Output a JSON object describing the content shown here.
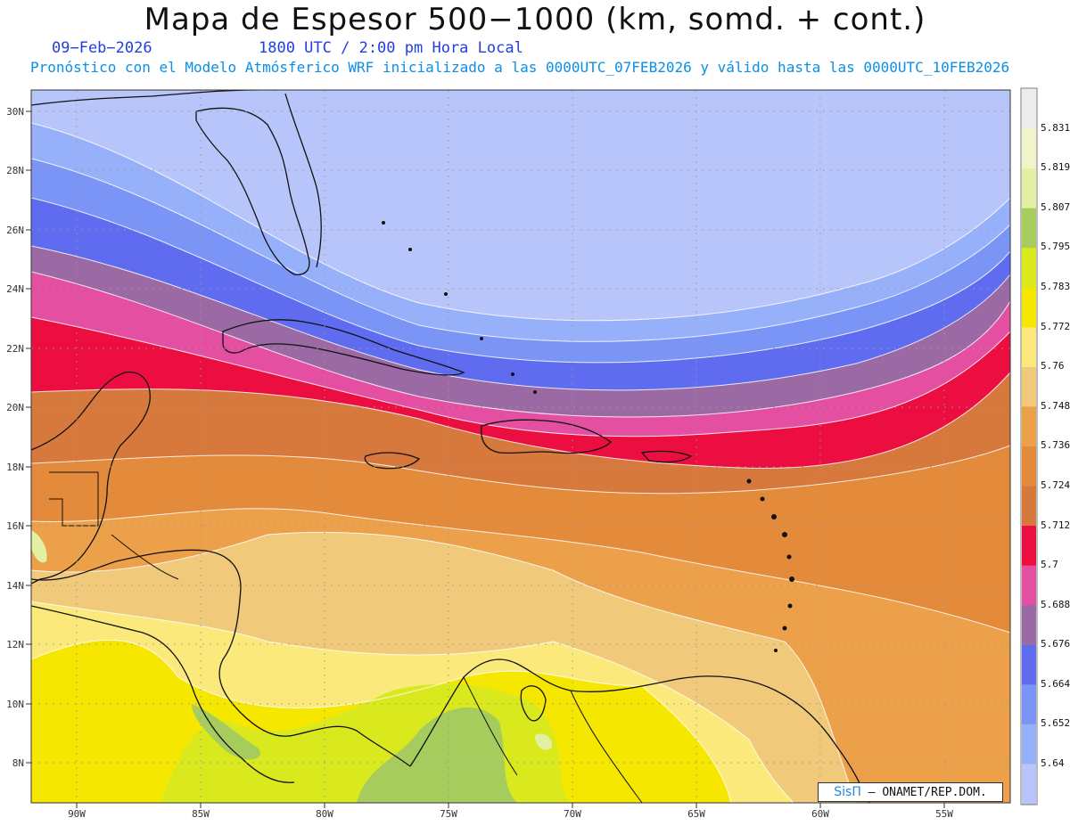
{
  "header": {
    "title": "Mapa de Espesor 500−1000 (km, somd. + cont.)",
    "date": "09−Feb−2026",
    "time": "1800 UTC / 2:00 pm Hora Local",
    "forecast_note": "Pronóstico con el Modelo Atmósferico WRF inicializado a las 0000UTC_07FEB2026 y válido hasta las  0000UTC_10FEB2026"
  },
  "map": {
    "lat_labels": [
      "30N",
      "28N",
      "26N",
      "24N",
      "22N",
      "20N",
      "18N",
      "16N",
      "14N",
      "12N",
      "10N",
      "8N"
    ],
    "lon_labels": [
      "90W",
      "85W",
      "80W",
      "75W",
      "70W",
      "65W",
      "60W",
      "55W"
    ]
  },
  "colorbar": {
    "levels": [
      "5.831",
      "5.819",
      "5.807",
      "5.795",
      "5.783",
      "5.772",
      "5.76",
      "5.748",
      "5.736",
      "5.724",
      "5.712",
      "5.7",
      "5.688",
      "5.676",
      "5.664",
      "5.652",
      "5.64"
    ],
    "colors": [
      "#ececec",
      "#f1f3c9",
      "#e3f0a3",
      "#a6cc5e",
      "#d9e91e",
      "#f6e700",
      "#fbe97c",
      "#f0c97a",
      "#eba049",
      "#e38a3b",
      "#d7783c",
      "#ec0e41",
      "#e44fa2",
      "#9b6aa4",
      "#5f6cf0",
      "#7b95f6",
      "#96b0fa",
      "#b8c5fa"
    ]
  },
  "credit": {
    "brand": "SisΠ",
    "text": "ONAMET/REP.DOM."
  }
}
